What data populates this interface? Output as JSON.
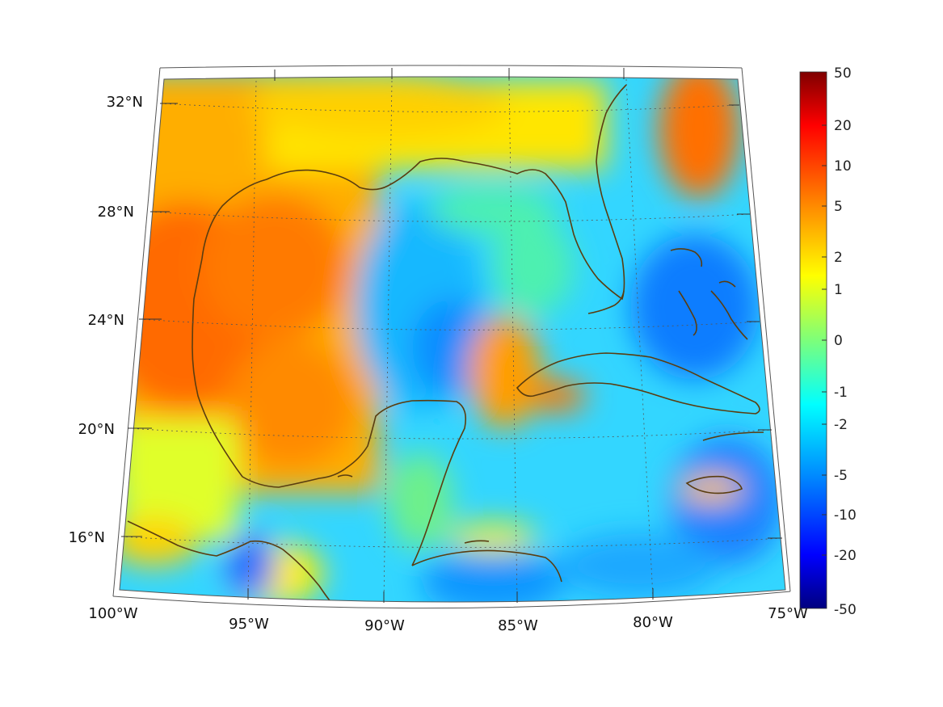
{
  "map": {
    "projection": "conic",
    "region": "Gulf of Mexico and Caribbean",
    "lon_range": [
      -100,
      -75
    ],
    "lat_range": [
      14,
      33
    ],
    "lon_ticks": [
      "100°W",
      "95°W",
      "90°W",
      "85°W",
      "80°W",
      "75°W"
    ],
    "lat_ticks": [
      "16°N",
      "20°N",
      "24°N",
      "28°N",
      "32°N"
    ],
    "coastline_color": "#5a3d10",
    "grid": "dotted"
  },
  "colorbar": {
    "colormap": "jet",
    "scale": "symmetric log",
    "ticks": [
      "50",
      "20",
      "10",
      "5",
      "2",
      "1",
      "0",
      "-1",
      "-2",
      "-5",
      "-10",
      "-20",
      "-50"
    ],
    "range": [
      -50,
      50
    ]
  }
}
